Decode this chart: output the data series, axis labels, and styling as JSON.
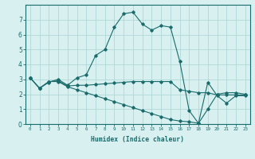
{
  "xlabel": "Humidex (Indice chaleur)",
  "ylabel": "",
  "bg_color": "#d8f0f0",
  "grid_color": "#b0d8d8",
  "line_color": "#1a6b6b",
  "xlim": [
    -0.5,
    23.5
  ],
  "ylim": [
    0,
    8
  ],
  "xticks": [
    0,
    1,
    2,
    3,
    4,
    5,
    6,
    7,
    8,
    9,
    10,
    11,
    12,
    13,
    14,
    15,
    16,
    17,
    18,
    19,
    20,
    21,
    22,
    23
  ],
  "yticks": [
    0,
    1,
    2,
    3,
    4,
    5,
    6,
    7
  ],
  "series": [
    {
      "x": [
        0,
        1,
        2,
        3,
        4,
        5,
        6,
        7,
        8,
        9,
        10,
        11,
        12,
        13,
        14,
        15,
        16,
        17,
        18,
        19,
        20,
        21,
        22,
        23
      ],
      "y": [
        3.1,
        2.4,
        2.8,
        3.0,
        2.6,
        3.1,
        3.3,
        4.6,
        5.0,
        6.5,
        7.4,
        7.5,
        6.7,
        6.3,
        6.6,
        6.5,
        4.2,
        0.9,
        0.05,
        2.8,
        1.9,
        1.4,
        1.9,
        1.9
      ]
    },
    {
      "x": [
        0,
        1,
        2,
        3,
        4,
        5,
        6,
        7,
        8,
        9,
        10,
        11,
        12,
        13,
        14,
        15,
        16,
        17,
        18,
        19,
        20,
        21,
        22,
        23
      ],
      "y": [
        3.1,
        2.4,
        2.85,
        2.9,
        2.55,
        2.6,
        2.6,
        2.65,
        2.7,
        2.75,
        2.8,
        2.85,
        2.85,
        2.85,
        2.85,
        2.85,
        2.3,
        2.2,
        2.1,
        2.1,
        1.95,
        1.95,
        1.95,
        1.95
      ]
    },
    {
      "x": [
        0,
        1,
        2,
        3,
        4,
        5,
        6,
        7,
        8,
        9,
        10,
        11,
        12,
        13,
        14,
        15,
        16,
        17,
        18,
        19,
        20,
        21,
        22,
        23
      ],
      "y": [
        3.1,
        2.4,
        2.85,
        2.85,
        2.5,
        2.3,
        2.1,
        1.9,
        1.7,
        1.5,
        1.3,
        1.1,
        0.9,
        0.7,
        0.5,
        0.3,
        0.2,
        0.15,
        0.05,
        1.0,
        2.0,
        2.1,
        2.1,
        2.0
      ]
    }
  ]
}
